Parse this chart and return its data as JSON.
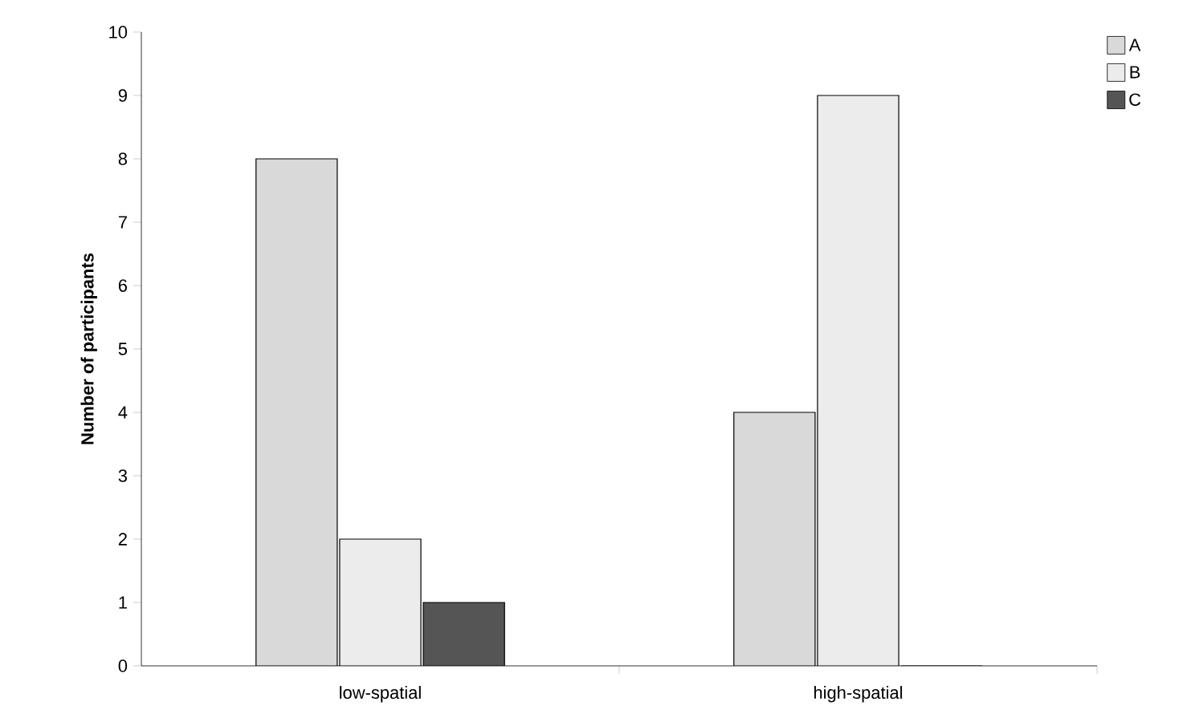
{
  "chart_data": {
    "type": "bar",
    "ylabel": "Number of participants",
    "categories": [
      "low-spatial",
      "high-spatial"
    ],
    "series": [
      {
        "name": "A",
        "color": "#d9d9d9",
        "values": [
          8,
          4
        ]
      },
      {
        "name": "B",
        "color": "#ececec",
        "values": [
          2,
          9
        ]
      },
      {
        "name": "C",
        "color": "#555555",
        "values": [
          1,
          0
        ]
      }
    ],
    "ylim": [
      0,
      10
    ],
    "yticks": [
      0,
      1,
      2,
      3,
      4,
      5,
      6,
      7,
      8,
      9,
      10
    ],
    "legend": "top right"
  }
}
